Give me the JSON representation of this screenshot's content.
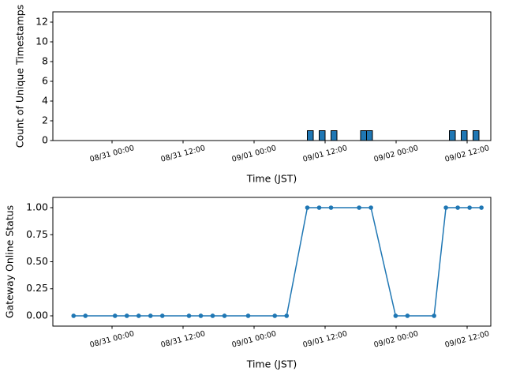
{
  "chart_data": [
    {
      "type": "bar",
      "ylabel": "Count of Unique Timestamps",
      "xlabel": "Time (JST)",
      "x": [
        "09/01 09:30",
        "09/01 11:30",
        "09/01 13:30",
        "09/01 18:30",
        "09/01 19:30",
        "09/02 09:30",
        "09/02 11:30",
        "09/02 13:30"
      ],
      "values": [
        1,
        1,
        1,
        1,
        1,
        1,
        1,
        1
      ],
      "color": "#1f77b4",
      "xlim": [
        "08/30 14:00",
        "09/02 16:00"
      ],
      "xticks": [
        "08/31 00:00",
        "08/31 12:00",
        "09/01 00:00",
        "09/01 12:00",
        "09/02 00:00",
        "09/02 12:00"
      ],
      "ylim": [
        0,
        13.04
      ],
      "yticks": [
        0,
        2,
        4,
        6,
        8,
        10,
        12
      ]
    },
    {
      "type": "line",
      "ylabel": "Gateway Online Status",
      "xlabel": "Time (JST)",
      "x": [
        "08/30 17:30",
        "08/30 19:30",
        "08/31 00:30",
        "08/31 02:30",
        "08/31 04:30",
        "08/31 06:30",
        "08/31 08:30",
        "08/31 13:00",
        "08/31 15:00",
        "08/31 17:00",
        "08/31 19:00",
        "08/31 23:00",
        "09/01 03:30",
        "09/01 05:30",
        "09/01 09:00",
        "09/01 11:00",
        "09/01 13:00",
        "09/01 17:45",
        "09/01 19:45",
        "09/01 23:55",
        "09/02 01:55",
        "09/02 06:25",
        "09/02 08:25",
        "09/02 10:25",
        "09/02 12:25",
        "09/02 14:25"
      ],
      "values": [
        0,
        0,
        0,
        0,
        0,
        0,
        0,
        0,
        0,
        0,
        0,
        0,
        0,
        0,
        1,
        1,
        1,
        1,
        1,
        0,
        0,
        0,
        1,
        1,
        1,
        1
      ],
      "color": "#1f77b4",
      "xlim": [
        "08/30 14:00",
        "09/02 16:00"
      ],
      "xticks": [
        "08/31 00:00",
        "08/31 12:00",
        "09/01 00:00",
        "09/01 12:00",
        "09/02 00:00",
        "09/02 12:00"
      ],
      "ylim": [
        -0.095,
        1.095
      ],
      "yticks": [
        {
          "value": 0,
          "label": "0.00"
        },
        {
          "value": 0.25,
          "label": "0.25"
        },
        {
          "value": 0.5,
          "label": "0.50"
        },
        {
          "value": 0.75,
          "label": "0.75"
        },
        {
          "value": 1,
          "label": "1.00"
        }
      ]
    }
  ]
}
